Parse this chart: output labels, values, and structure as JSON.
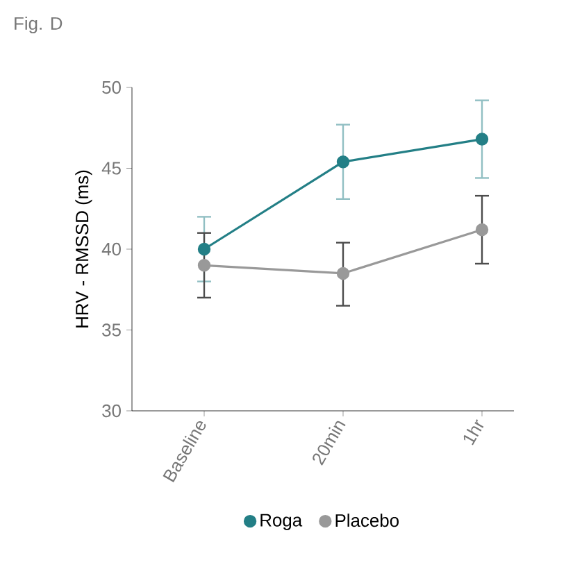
{
  "chart_data": {
    "type": "line",
    "title": "Fig. D",
    "ylabel": "HRV - RMSSD (ms)",
    "categories": [
      "Baseline",
      "20min",
      "1hr"
    ],
    "series": [
      {
        "name": "Roga",
        "color": "#237f86",
        "values": [
          40.0,
          45.4,
          46.8
        ],
        "errors": [
          [
            38.0,
            42.0
          ],
          [
            43.1,
            47.7
          ],
          [
            44.4,
            49.2
          ]
        ]
      },
      {
        "name": "Placebo",
        "color": "#999999",
        "values": [
          39.0,
          38.5,
          41.2
        ],
        "errors": [
          [
            37.0,
            41.0
          ],
          [
            36.5,
            40.4
          ],
          [
            39.1,
            43.3
          ]
        ]
      }
    ],
    "ylim": [
      30,
      50
    ],
    "yticks": [
      30,
      35,
      40,
      45,
      50
    ],
    "legend": "bottom",
    "marker": "circle",
    "line_style": "solid"
  }
}
